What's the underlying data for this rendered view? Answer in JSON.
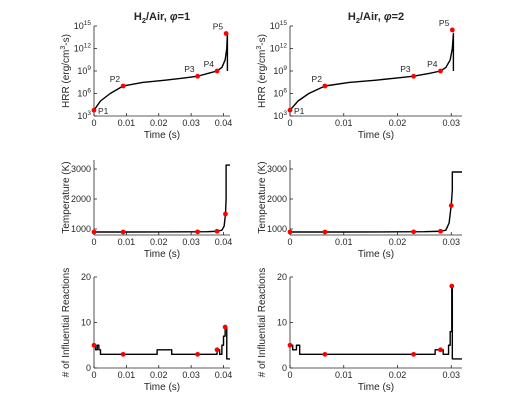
{
  "chart_data": [
    {
      "type": "line",
      "title": "H2/Air, φ=1",
      "title_parts": {
        "base": "H",
        "sub1": "2",
        "mid": "/Air, ",
        "phi": "φ",
        "tail": "=1"
      },
      "xlabel": "Time (s)",
      "ylabel": "HRR (erg/cm³-s)",
      "ylabel_parts": {
        "base": "HRR (erg/cm",
        "sup": "3",
        "tail": "-s)"
      },
      "yscale": "log",
      "xlim": [
        0,
        0.042
      ],
      "ylim": [
        1000,
        1000000000000000.0
      ],
      "xticks": [
        0,
        0.01,
        0.02,
        0.03,
        0.04
      ],
      "xtick_labels": [
        "0",
        "0.01",
        "0.02",
        "0.03",
        "0.04"
      ],
      "yticks": [
        1000,
        1000000,
        1000000000,
        1000000000000,
        1000000000000000.0
      ],
      "ytick_labels": [
        {
          "b": "10",
          "e": "3"
        },
        {
          "b": "10",
          "e": "6"
        },
        {
          "b": "10",
          "e": "9"
        },
        {
          "b": "10",
          "e": "12"
        },
        {
          "b": "10",
          "e": "15"
        }
      ],
      "series": [
        {
          "x": [
            0,
            0.002,
            0.005,
            0.009,
            0.015,
            0.022,
            0.028,
            0.032,
            0.036,
            0.038,
            0.0395,
            0.0405,
            0.041,
            0.0412,
            0.0412
          ],
          "y": [
            6000,
            100000,
            1000000,
            10000000,
            30000000,
            60000000,
            120000000,
            200000000,
            600000000,
            1000000000,
            3000000000,
            30000000000,
            1000000000000,
            100000000000000.0,
            1000000000.0
          ]
        }
      ],
      "points": [
        {
          "label": "P1",
          "x": 0.0,
          "y": 6000
        },
        {
          "label": "P2",
          "x": 0.009,
          "y": 10000000
        },
        {
          "label": "P3",
          "x": 0.032,
          "y": 200000000
        },
        {
          "label": "P4",
          "x": 0.038,
          "y": 1000000000
        },
        {
          "label": "P5",
          "x": 0.0408,
          "y": 100000000000000
        }
      ],
      "marker_color": "#ff0000",
      "line_color": "#000000"
    },
    {
      "type": "line",
      "title": "H2/Air, φ=2",
      "title_parts": {
        "base": "H",
        "sub1": "2",
        "mid": "/Air, ",
        "phi": "φ",
        "tail": "=2"
      },
      "xlabel": "Time (s)",
      "ylabel": "HRR (erg/cm³-s)",
      "ylabel_parts": {
        "base": "HRR (erg/cm",
        "sup": "3",
        "tail": "-s)"
      },
      "yscale": "log",
      "xlim": [
        0,
        0.032
      ],
      "ylim": [
        1000,
        1000000000000000.0
      ],
      "xticks": [
        0,
        0.01,
        0.02,
        0.03
      ],
      "xtick_labels": [
        "0",
        "0.01",
        "0.02",
        "0.03"
      ],
      "yticks": [
        1000,
        1000000,
        1000000000,
        1000000000000,
        1000000000000000.0
      ],
      "ytick_labels": [
        {
          "b": "10",
          "e": "3"
        },
        {
          "b": "10",
          "e": "6"
        },
        {
          "b": "10",
          "e": "9"
        },
        {
          "b": "10",
          "e": "12"
        },
        {
          "b": "10",
          "e": "15"
        }
      ],
      "series": [
        {
          "x": [
            0,
            0.0015,
            0.0035,
            0.0065,
            0.011,
            0.016,
            0.02,
            0.023,
            0.026,
            0.028,
            0.029,
            0.0298,
            0.0302,
            0.0304,
            0.0304
          ],
          "y": [
            6000,
            100000,
            1000000,
            10000000,
            30000000,
            60000000,
            120000000,
            200000000,
            500000000,
            1000000000,
            3000000000,
            30000000000,
            1000000000000,
            100000000000000.0,
            1000000000.0
          ]
        }
      ],
      "points": [
        {
          "label": "P1",
          "x": 0.0,
          "y": 6000
        },
        {
          "label": "P2",
          "x": 0.0065,
          "y": 10000000
        },
        {
          "label": "P3",
          "x": 0.023,
          "y": 200000000
        },
        {
          "label": "P4",
          "x": 0.028,
          "y": 1000000000
        },
        {
          "label": "P5",
          "x": 0.0302,
          "y": 300000000000000
        }
      ],
      "marker_color": "#ff0000",
      "line_color": "#000000"
    },
    {
      "type": "line",
      "xlabel": "Time (s)",
      "ylabel": "Temperature (K)",
      "xlim": [
        0,
        0.042
      ],
      "ylim": [
        800,
        3300
      ],
      "xticks": [
        0,
        0.01,
        0.02,
        0.03,
        0.04
      ],
      "xtick_labels": [
        "0",
        "0.01",
        "0.02",
        "0.03",
        "0.04"
      ],
      "yticks": [
        1000,
        2000,
        3000
      ],
      "ytick_labels": [
        "1000",
        "2000",
        "3000"
      ],
      "series": [
        {
          "x": [
            0,
            0.01,
            0.02,
            0.03,
            0.035,
            0.038,
            0.0395,
            0.0402,
            0.0406,
            0.0408,
            0.0408,
            0.042
          ],
          "y": [
            900,
            900,
            903,
            905,
            910,
            925,
            960,
            1100,
            1500,
            2000,
            3130,
            3130
          ]
        }
      ],
      "points": [
        {
          "x": 0.0,
          "y": 900
        },
        {
          "x": 0.009,
          "y": 900
        },
        {
          "x": 0.032,
          "y": 905
        },
        {
          "x": 0.038,
          "y": 925
        },
        {
          "x": 0.0406,
          "y": 1500
        }
      ],
      "marker_color": "#ff0000",
      "line_color": "#000000"
    },
    {
      "type": "line",
      "xlabel": "Time (s)",
      "ylabel": "Temperature (K)",
      "xlim": [
        0,
        0.032
      ],
      "ylim": [
        800,
        3300
      ],
      "xticks": [
        0,
        0.01,
        0.02,
        0.03
      ],
      "xtick_labels": [
        "0",
        "0.01",
        "0.02",
        "0.03"
      ],
      "yticks": [
        1000,
        2000,
        3000
      ],
      "ytick_labels": [
        "1000",
        "2000",
        "3000"
      ],
      "series": [
        {
          "x": [
            0,
            0.01,
            0.02,
            0.025,
            0.028,
            0.029,
            0.0296,
            0.03,
            0.0302,
            0.0302,
            0.032
          ],
          "y": [
            900,
            900,
            905,
            910,
            925,
            960,
            1200,
            1800,
            2300,
            2900,
            2900
          ]
        }
      ],
      "points": [
        {
          "x": 0.0,
          "y": 900
        },
        {
          "x": 0.0065,
          "y": 900
        },
        {
          "x": 0.023,
          "y": 905
        },
        {
          "x": 0.028,
          "y": 925
        },
        {
          "x": 0.03,
          "y": 1780
        }
      ],
      "marker_color": "#ff0000",
      "line_color": "#000000"
    },
    {
      "type": "line",
      "xlabel": "Time (s)",
      "ylabel": "# of Influential Reactions",
      "xlim": [
        0,
        0.042
      ],
      "ylim": [
        0,
        20
      ],
      "xticks": [
        0,
        0.01,
        0.02,
        0.03,
        0.04
      ],
      "xtick_labels": [
        "0",
        "0.01",
        "0.02",
        "0.03",
        "0.04"
      ],
      "yticks": [
        0,
        10,
        20
      ],
      "ytick_labels": [
        "0",
        "10",
        "20"
      ],
      "series": [
        {
          "x": [
            0,
            0.0005,
            0.0005,
            0.001,
            0.001,
            0.0015,
            0.0015,
            0.002,
            0.002,
            0.0195,
            0.0195,
            0.024,
            0.024,
            0.038,
            0.038,
            0.0388,
            0.0388,
            0.0395,
            0.0395,
            0.04,
            0.04,
            0.0405,
            0.0405,
            0.041,
            0.041,
            0.042
          ],
          "y": [
            5,
            5,
            4,
            4,
            5,
            5,
            4,
            4,
            3,
            3,
            4,
            4,
            3,
            3,
            4,
            4,
            3,
            3,
            5,
            5,
            7,
            7,
            9,
            9,
            2,
            2
          ]
        }
      ],
      "points": [
        {
          "x": 0.0,
          "y": 5
        },
        {
          "x": 0.009,
          "y": 3
        },
        {
          "x": 0.032,
          "y": 3
        },
        {
          "x": 0.038,
          "y": 4
        },
        {
          "x": 0.0405,
          "y": 9
        }
      ],
      "marker_color": "#ff0000",
      "line_color": "#000000"
    },
    {
      "type": "line",
      "xlabel": "Time (s)",
      "ylabel": "# of Influential Reactions",
      "xlim": [
        0,
        0.032
      ],
      "ylim": [
        0,
        20
      ],
      "xticks": [
        0,
        0.01,
        0.02,
        0.03
      ],
      "xtick_labels": [
        "0",
        "0.01",
        "0.02",
        "0.03"
      ],
      "yticks": [
        0,
        10,
        20
      ],
      "ytick_labels": [
        "0",
        "10",
        "20"
      ],
      "series": [
        {
          "x": [
            0,
            0.0005,
            0.0005,
            0.0012,
            0.0012,
            0.0018,
            0.0018,
            0.027,
            0.027,
            0.0285,
            0.0285,
            0.0295,
            0.0295,
            0.0298,
            0.0298,
            0.0301,
            0.0301,
            0.0302,
            0.0302,
            0.032
          ],
          "y": [
            5,
            5,
            4,
            4,
            5,
            5,
            3,
            3,
            4,
            4,
            3,
            3,
            5,
            5,
            8,
            8,
            18,
            18,
            2,
            2
          ]
        }
      ],
      "points": [
        {
          "x": 0.0,
          "y": 5
        },
        {
          "x": 0.0065,
          "y": 3
        },
        {
          "x": 0.023,
          "y": 3
        },
        {
          "x": 0.028,
          "y": 4
        },
        {
          "x": 0.0301,
          "y": 18
        }
      ],
      "marker_color": "#ff0000",
      "line_color": "#000000"
    }
  ]
}
